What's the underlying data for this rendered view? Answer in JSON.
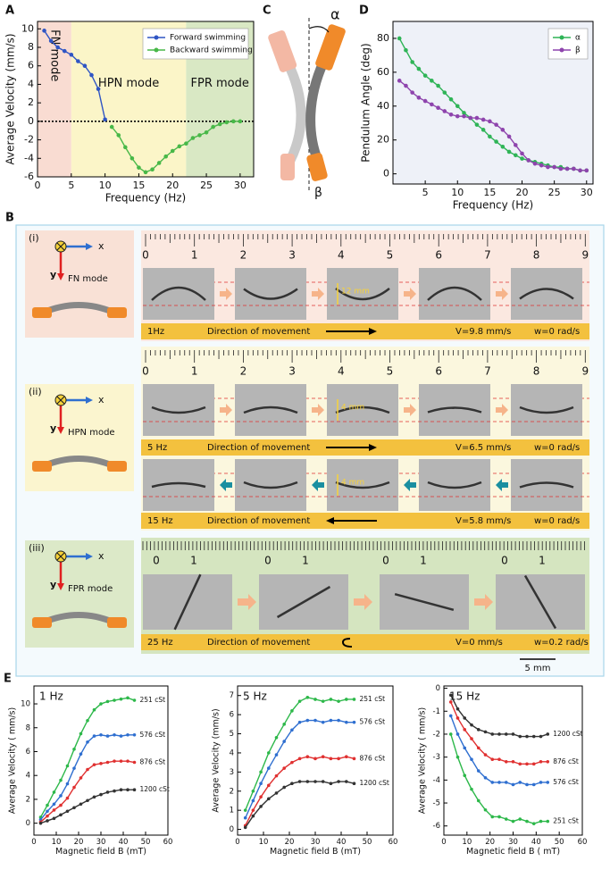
{
  "chart_data": [
    {
      "type": "line",
      "panel": "A",
      "xlabel": "Frequency (Hz)",
      "ylabel": "Average Velocity (mm/s)",
      "x": [
        1,
        2,
        3,
        4,
        5,
        6,
        7,
        8,
        9,
        10,
        11,
        12,
        13,
        14,
        15,
        16,
        17,
        18,
        19,
        20,
        21,
        22,
        23,
        24,
        25,
        26,
        27,
        28,
        29,
        30
      ],
      "xlim": [
        0,
        32
      ],
      "ylim": [
        -6,
        10.8
      ],
      "xticks": [
        0,
        5,
        10,
        15,
        20,
        25,
        30
      ],
      "yticks": [
        -6,
        -4,
        -2,
        0,
        2,
        4,
        6,
        8,
        10
      ],
      "reference_line": 0,
      "legend": "upper right",
      "regions": [
        {
          "label": "FN mode",
          "xlim": [
            0,
            5
          ],
          "color": "#f9dcd2"
        },
        {
          "label": "HPN mode",
          "xlim": [
            5,
            22
          ],
          "color": "#fbf5c8"
        },
        {
          "label": "FPR mode",
          "xlim": [
            22,
            32
          ],
          "color": "#d9e8c4"
        }
      ],
      "series": [
        {
          "name": "Forward swimming",
          "color": "#2f55c4",
          "values": [
            9.8,
            8.7,
            8.0,
            7.6,
            7.2,
            6.5,
            6.0,
            5.0,
            3.5,
            0.2,
            null,
            null,
            null,
            null,
            null,
            null,
            null,
            null,
            null,
            null,
            null,
            null,
            null,
            null,
            null,
            null,
            null,
            null,
            null,
            null
          ]
        },
        {
          "name": "Backward swimming",
          "color": "#48b848",
          "values": [
            null,
            null,
            null,
            null,
            null,
            null,
            null,
            null,
            null,
            null,
            -0.6,
            -1.5,
            -2.8,
            -4.0,
            -5.0,
            -5.5,
            -5.2,
            -4.5,
            -3.8,
            -3.2,
            -2.7,
            -2.4,
            -1.8,
            -1.5,
            -1.2,
            -0.6,
            -0.3,
            -0.1,
            0,
            0
          ]
        }
      ]
    },
    {
      "type": "line",
      "panel": "D",
      "xlabel": "Frequency (Hz)",
      "ylabel": "Pendulum Angle (deg)",
      "x": [
        1,
        2,
        3,
        4,
        5,
        6,
        7,
        8,
        9,
        10,
        11,
        12,
        13,
        14,
        15,
        16,
        17,
        18,
        19,
        20,
        21,
        22,
        23,
        24,
        25,
        26,
        27,
        28,
        29,
        30
      ],
      "xlim": [
        0,
        31
      ],
      "ylim": [
        -6,
        90
      ],
      "xticks": [
        5,
        10,
        15,
        20,
        25,
        30
      ],
      "yticks": [
        0,
        20,
        40,
        60,
        80
      ],
      "plot_background": "#eef1f8",
      "legend": "upper right",
      "series": [
        {
          "name": "α",
          "color": "#2fb457",
          "values": [
            80,
            73,
            66,
            62,
            58,
            55,
            52,
            48,
            44,
            40,
            36,
            33,
            29,
            26,
            22,
            19,
            16,
            13,
            11,
            9,
            8,
            7,
            6,
            5,
            4,
            4,
            3,
            3,
            2,
            2
          ]
        },
        {
          "name": "β",
          "color": "#8e44ad",
          "values": [
            55,
            52,
            48,
            45,
            43,
            41,
            39,
            37,
            35,
            34,
            34,
            33,
            33,
            32,
            31,
            29,
            26,
            22,
            17,
            12,
            8,
            6,
            5,
            4,
            4,
            3,
            3,
            3,
            2,
            2
          ]
        }
      ]
    },
    {
      "type": "line",
      "panel": "E",
      "title": "1 Hz",
      "title_color": "#e8742a",
      "xlabel": "Magnetic field B (mT)",
      "ylabel": "Average Velocity ( mm/s)",
      "x": [
        3,
        6,
        9,
        12,
        15,
        18,
        21,
        24,
        27,
        30,
        33,
        36,
        39,
        42,
        45
      ],
      "xlim": [
        0,
        60
      ],
      "ylim": [
        -1,
        11.5
      ],
      "xticks": [
        0,
        10,
        20,
        30,
        40,
        50,
        60
      ],
      "yticks": [
        0,
        2,
        4,
        6,
        8,
        10
      ],
      "end_labels": true,
      "series": [
        {
          "name": "251 cSt",
          "color": "#2db84a",
          "values": [
            0.5,
            1.5,
            2.6,
            3.6,
            4.8,
            6.2,
            7.5,
            8.6,
            9.5,
            10.0,
            10.2,
            10.3,
            10.4,
            10.5,
            10.3
          ]
        },
        {
          "name": "576 cSt",
          "color": "#2f6fd0",
          "values": [
            0.3,
            1.0,
            1.6,
            2.3,
            3.3,
            4.6,
            5.8,
            6.8,
            7.3,
            7.4,
            7.3,
            7.4,
            7.3,
            7.4,
            7.4
          ]
        },
        {
          "name": "876 cSt",
          "color": "#e03030",
          "values": [
            0.1,
            0.6,
            1.1,
            1.5,
            2.1,
            3.0,
            3.8,
            4.5,
            4.9,
            5.0,
            5.1,
            5.2,
            5.2,
            5.2,
            5.1
          ]
        },
        {
          "name": "1200 cSt",
          "color": "#333333",
          "values": [
            0.0,
            0.2,
            0.4,
            0.7,
            1.0,
            1.3,
            1.6,
            1.9,
            2.2,
            2.4,
            2.6,
            2.7,
            2.8,
            2.8,
            2.8
          ]
        }
      ]
    },
    {
      "type": "line",
      "title": "5 Hz",
      "title_color": "#e8742a",
      "xlabel": "Magnetic field B (mT)",
      "ylabel": "Average Velocity (mm/s)",
      "x": [
        3,
        6,
        9,
        12,
        15,
        18,
        21,
        24,
        27,
        30,
        33,
        36,
        39,
        42,
        45
      ],
      "xlim": [
        0,
        60
      ],
      "ylim": [
        -0.3,
        7.5
      ],
      "xticks": [
        0,
        10,
        20,
        30,
        40,
        50,
        60
      ],
      "yticks": [
        0,
        1,
        2,
        3,
        4,
        5,
        6,
        7
      ],
      "end_labels": true,
      "series": [
        {
          "name": "251 cSt",
          "color": "#2db84a",
          "values": [
            1.0,
            2.0,
            3.0,
            4.0,
            4.8,
            5.5,
            6.2,
            6.7,
            6.9,
            6.8,
            6.7,
            6.8,
            6.7,
            6.8,
            6.8
          ]
        },
        {
          "name": "576 cSt",
          "color": "#2f6fd0",
          "values": [
            0.6,
            1.5,
            2.4,
            3.2,
            3.9,
            4.6,
            5.2,
            5.6,
            5.7,
            5.7,
            5.6,
            5.7,
            5.7,
            5.6,
            5.6
          ]
        },
        {
          "name": "876 cSt",
          "color": "#e03030",
          "values": [
            0.2,
            1.0,
            1.7,
            2.3,
            2.8,
            3.2,
            3.5,
            3.7,
            3.8,
            3.7,
            3.8,
            3.7,
            3.7,
            3.8,
            3.7
          ]
        },
        {
          "name": "1200 cSt",
          "color": "#333333",
          "values": [
            0.1,
            0.7,
            1.2,
            1.6,
            1.9,
            2.2,
            2.4,
            2.5,
            2.5,
            2.5,
            2.5,
            2.4,
            2.5,
            2.5,
            2.4
          ]
        }
      ]
    },
    {
      "type": "line",
      "title": "15 Hz",
      "title_color": "#e8742a",
      "xlabel": "Magnetic field B ( mT)",
      "ylabel": "Average Velocity ( mm/s)",
      "x": [
        3,
        6,
        9,
        12,
        15,
        18,
        21,
        24,
        27,
        30,
        33,
        36,
        39,
        42,
        45
      ],
      "xlim": [
        0,
        60
      ],
      "ylim": [
        -6.4,
        0.1
      ],
      "xticks": [
        0,
        10,
        20,
        30,
        40,
        50,
        60
      ],
      "yticks": [
        -6,
        -5,
        -4,
        -3,
        -2,
        -1,
        0
      ],
      "end_labels": true,
      "series": [
        {
          "name": "1200 cSt",
          "color": "#333333",
          "values": [
            -0.3,
            -0.9,
            -1.3,
            -1.6,
            -1.8,
            -1.9,
            -2.0,
            -2.0,
            -2.0,
            -2.0,
            -2.1,
            -2.1,
            -2.1,
            -2.1,
            -2.0
          ]
        },
        {
          "name": "876 cSt",
          "color": "#e03030",
          "values": [
            -0.6,
            -1.3,
            -1.8,
            -2.2,
            -2.6,
            -2.9,
            -3.1,
            -3.1,
            -3.2,
            -3.2,
            -3.3,
            -3.3,
            -3.3,
            -3.2,
            -3.2
          ]
        },
        {
          "name": "576 cSt",
          "color": "#2f6fd0",
          "values": [
            -1.2,
            -2.0,
            -2.6,
            -3.1,
            -3.6,
            -3.9,
            -4.1,
            -4.1,
            -4.1,
            -4.2,
            -4.1,
            -4.2,
            -4.2,
            -4.1,
            -4.1
          ]
        },
        {
          "name": "251 cSt",
          "color": "#2db84a",
          "values": [
            -2.0,
            -3.0,
            -3.8,
            -4.4,
            -4.9,
            -5.3,
            -5.6,
            -5.6,
            -5.7,
            -5.8,
            -5.7,
            -5.8,
            -5.9,
            -5.8,
            -5.8
          ]
        }
      ]
    }
  ],
  "panel_c": {
    "label": "C",
    "alpha": "α",
    "beta": "β"
  },
  "panel_b": {
    "label": "B",
    "scale": "5 mm",
    "rows": [
      {
        "tag": "(i)",
        "axis_x": "x",
        "axis_y": "y",
        "mode": "FN mode",
        "ruler": [
          0,
          1,
          2,
          3,
          4,
          5,
          6,
          7,
          8,
          9
        ],
        "strips": [
          {
            "freq": "1Hz",
            "direction": "Direction of movement",
            "velocity": "V=9.8 mm/s",
            "omega": "w=0 rad/s",
            "marker": "12 mm"
          }
        ]
      },
      {
        "tag": "(ii)",
        "axis_x": "x",
        "axis_y": "y",
        "mode": "HPN mode",
        "ruler": [
          0,
          1,
          2,
          3,
          4,
          5,
          6,
          7,
          8,
          9
        ],
        "strips": [
          {
            "freq": "5 Hz",
            "direction": "Direction of movement",
            "velocity": "V=6.5 mm/s",
            "omega": "w=0 rad/s",
            "marker": "4 mm"
          },
          {
            "freq": "15 Hz",
            "direction": "Direction of movement",
            "velocity": "V=5.8 mm/s",
            "omega": "w=0 rad/s",
            "marker": "4 mm"
          }
        ]
      },
      {
        "tag": "(iii)",
        "axis_x": "x",
        "axis_y": "y",
        "mode": "FPR mode",
        "ruler": [
          0,
          1
        ],
        "strips": [
          {
            "freq": "25 Hz",
            "direction": "Direction of movement",
            "velocity": "V=0 mm/s",
            "omega": "w=0.2 rad/s"
          }
        ]
      }
    ]
  }
}
